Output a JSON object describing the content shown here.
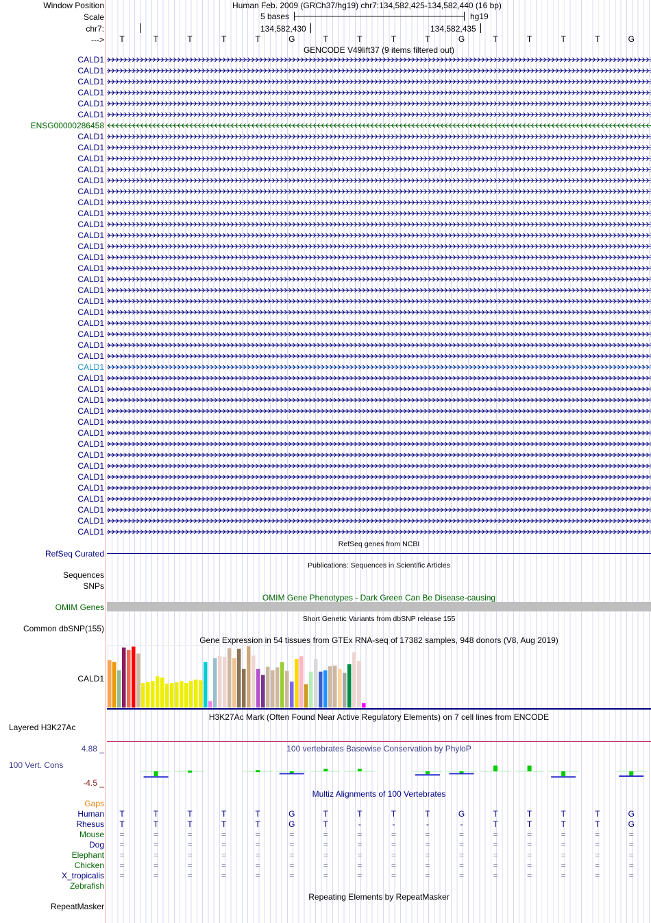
{
  "header": {
    "window_position_label": "Window Position",
    "assembly_position": "Human Feb. 2009 (GRCh37/hg19)   chr7:134,582,425-134,582,440 (16 bp)",
    "scale_label": "Scale",
    "scale_text": "5 bases",
    "scale_db": "hg19",
    "chrom_label": "chr7:",
    "coord_ticks": [
      "134,582,430",
      "134,582,435"
    ],
    "strand_label": "--->"
  },
  "bases": [
    "T",
    "T",
    "T",
    "T",
    "T",
    "G",
    "T",
    "T",
    "T",
    "T",
    "G",
    "T",
    "T",
    "T",
    "T",
    "G"
  ],
  "gencode": {
    "title": "GENCODE V49lift37 (9 items filtered out)",
    "rows": [
      {
        "name": "CALD1",
        "strand": "+",
        "color": "#000080"
      },
      {
        "name": "CALD1",
        "strand": "+",
        "color": "#000080"
      },
      {
        "name": "CALD1",
        "strand": "+",
        "color": "#000080"
      },
      {
        "name": "CALD1",
        "strand": "+",
        "color": "#000080"
      },
      {
        "name": "CALD1",
        "strand": "+",
        "color": "#000080"
      },
      {
        "name": "CALD1",
        "strand": "+",
        "color": "#000080"
      },
      {
        "name": "ENSG00000286458",
        "strand": "-",
        "color": "#006400"
      },
      {
        "name": "CALD1",
        "strand": "+",
        "color": "#000080"
      },
      {
        "name": "CALD1",
        "strand": "+",
        "color": "#000080"
      },
      {
        "name": "CALD1",
        "strand": "+",
        "color": "#000080"
      },
      {
        "name": "CALD1",
        "strand": "+",
        "color": "#000080"
      },
      {
        "name": "CALD1",
        "strand": "+",
        "color": "#000080"
      },
      {
        "name": "CALD1",
        "strand": "+",
        "color": "#000080"
      },
      {
        "name": "CALD1",
        "strand": "+",
        "color": "#000080"
      },
      {
        "name": "CALD1",
        "strand": "+",
        "color": "#000080"
      },
      {
        "name": "CALD1",
        "strand": "+",
        "color": "#000080"
      },
      {
        "name": "CALD1",
        "strand": "+",
        "color": "#000080"
      },
      {
        "name": "CALD1",
        "strand": "+",
        "color": "#000080"
      },
      {
        "name": "CALD1",
        "strand": "+",
        "color": "#000080"
      },
      {
        "name": "CALD1",
        "strand": "+",
        "color": "#000080"
      },
      {
        "name": "CALD1",
        "strand": "+",
        "color": "#000080"
      },
      {
        "name": "CALD1",
        "strand": "+",
        "color": "#000080"
      },
      {
        "name": "CALD1",
        "strand": "+",
        "color": "#000080"
      },
      {
        "name": "CALD1",
        "strand": "+",
        "color": "#000080"
      },
      {
        "name": "CALD1",
        "strand": "+",
        "color": "#000080"
      },
      {
        "name": "CALD1",
        "strand": "+",
        "color": "#000080"
      },
      {
        "name": "CALD1",
        "strand": "+",
        "color": "#000080"
      },
      {
        "name": "CALD1",
        "strand": "+",
        "color": "#000080"
      },
      {
        "name": "CALD1",
        "strand": "+",
        "color": "#1e90c8"
      },
      {
        "name": "CALD1",
        "strand": "+",
        "color": "#000080"
      },
      {
        "name": "CALD1",
        "strand": "+",
        "color": "#000080"
      },
      {
        "name": "CALD1",
        "strand": "+",
        "color": "#000080"
      },
      {
        "name": "CALD1",
        "strand": "+",
        "color": "#000080"
      },
      {
        "name": "CALD1",
        "strand": "+",
        "color": "#000080"
      },
      {
        "name": "CALD1",
        "strand": "+",
        "color": "#000080"
      },
      {
        "name": "CALD1",
        "strand": "+",
        "color": "#000080"
      },
      {
        "name": "CALD1",
        "strand": "+",
        "color": "#000080"
      },
      {
        "name": "CALD1",
        "strand": "+",
        "color": "#000080"
      },
      {
        "name": "CALD1",
        "strand": "+",
        "color": "#000080"
      },
      {
        "name": "CALD1",
        "strand": "+",
        "color": "#000080"
      },
      {
        "name": "CALD1",
        "strand": "+",
        "color": "#000080"
      },
      {
        "name": "CALD1",
        "strand": "+",
        "color": "#000080"
      },
      {
        "name": "CALD1",
        "strand": "+",
        "color": "#000080"
      },
      {
        "name": "CALD1",
        "strand": "+",
        "color": "#000080"
      }
    ]
  },
  "refseq": {
    "title": "RefSeq genes from NCBI",
    "label": "RefSeq Curated"
  },
  "publications": {
    "title": "Publications: Sequences in Scientific Articles",
    "label_sequences": "Sequences",
    "label_snps": "SNPs"
  },
  "omim": {
    "title": "OMIM Gene Phenotypes - Dark Green Can Be Disease-causing",
    "label": "OMIM Genes"
  },
  "dbsnp": {
    "title": "Short Genetic Variants from dbSNP release 155",
    "label": "Common dbSNP(155)"
  },
  "gtex": {
    "title": "Gene Expression in 54 tissues from GTEx RNA-seq of 17382 samples, 948 donors (V8, Aug 2019)",
    "label": "CALD1"
  },
  "chart_data": {
    "type": "bar",
    "title": "Gene Expression in 54 tissues from GTEx RNA-seq of 17382 samples, 948 donors (V8, Aug 2019)",
    "values": [
      212,
      204,
      167,
      269,
      258,
      273,
      242,
      110,
      114,
      119,
      140,
      134,
      107,
      110,
      113,
      119,
      110,
      119,
      125,
      122,
      204,
      29,
      221,
      230,
      227,
      266,
      221,
      263,
      173,
      275,
      233,
      173,
      146,
      183,
      167,
      180,
      203,
      164,
      116,
      218,
      230,
      104,
      161,
      218,
      161,
      167,
      185,
      188,
      173,
      155,
      194,
      248,
      209,
      20
    ],
    "colors": [
      "#FFA54F",
      "#EE9A00",
      "#8FBC8F",
      "#8B1C62",
      "#EE6A50",
      "#FF0000",
      "#CDB79E",
      "#EEEE00",
      "#EEEE00",
      "#EEEE00",
      "#EEEE00",
      "#EEEE00",
      "#EEEE00",
      "#EEEE00",
      "#EEEE00",
      "#EEEE00",
      "#EEEE00",
      "#EEEE00",
      "#EEEE00",
      "#EEEE00",
      "#00CED1",
      "#EE82EE",
      "#9AC0CD",
      "#EED5D2",
      "#EED5D2",
      "#CDB79E",
      "#EEC591",
      "#8B7355",
      "#8B7355",
      "#CDAA7D",
      "#EED5D2",
      "#B452CD",
      "#7A378B",
      "#CDB79E",
      "#CDB79E",
      "#CDB79E",
      "#9ACD32",
      "#CDB79E",
      "#7B68EE",
      "#FFD700",
      "#FFB6C1",
      "#CD9B1D",
      "#B4EEB4",
      "#D9D9D9",
      "#3A5FCD",
      "#1E90FF",
      "#CDB79E",
      "#CDB79E",
      "#FFD39B",
      "#A6A6A6",
      "#008B45",
      "#EED5D2",
      "#EED5D2",
      "#FF00FF"
    ],
    "ylim": [
      0,
      280
    ]
  },
  "h3k27ac": {
    "title": "H3K27Ac Mark (Often Found Near Active Regulatory Elements) on 7 cell lines from ENCODE",
    "label": "Layered H3K27Ac"
  },
  "phylop": {
    "title": "100 vertebrates Basewise Conservation by PhyloP",
    "label": "100 Vert. Cons",
    "max": "4.88 _",
    "min": "-4.5 _",
    "scores": [
      0,
      -1.2,
      0.2,
      0,
      0.3,
      -0.4,
      0.6,
      0.6,
      0,
      -0.7,
      -0.4,
      1.4,
      1.4,
      -1.2,
      0,
      -1.0
    ]
  },
  "multiz": {
    "title": "Multiz Alignments of 100 Vertebrates",
    "gaps_label": "Gaps",
    "species": [
      {
        "name": "Human",
        "color": "#000080",
        "seq": [
          "T",
          "T",
          "T",
          "T",
          "T",
          "G",
          "T",
          "T",
          "T",
          "T",
          "G",
          "T",
          "T",
          "T",
          "T",
          "G"
        ]
      },
      {
        "name": "Rhesus",
        "color": "#000080",
        "seq": [
          "T",
          "T",
          "T",
          "T",
          "T",
          "G",
          "T",
          "-",
          "-",
          "-",
          "-",
          "T",
          "T",
          "T",
          "T",
          "G"
        ]
      },
      {
        "name": "Mouse",
        "color": "#006400",
        "seq": [
          "=",
          "=",
          "=",
          "=",
          "=",
          "=",
          "=",
          "=",
          "=",
          "=",
          "=",
          "=",
          "=",
          "=",
          "=",
          "="
        ]
      },
      {
        "name": "Dog",
        "color": "#000080",
        "seq": [
          "=",
          "=",
          "=",
          "=",
          "=",
          "=",
          "=",
          "=",
          "=",
          "=",
          "=",
          "=",
          "=",
          "=",
          "=",
          "="
        ]
      },
      {
        "name": "Elephant",
        "color": "#006400",
        "seq": [
          "=",
          "=",
          "=",
          "=",
          "=",
          "=",
          "=",
          "=",
          "=",
          "=",
          "=",
          "=",
          "=",
          "=",
          "=",
          "="
        ]
      },
      {
        "name": "Chicken",
        "color": "#006400",
        "seq": [
          "=",
          "=",
          "=",
          "=",
          "=",
          "=",
          "=",
          "=",
          "=",
          "=",
          "=",
          "=",
          "=",
          "=",
          "=",
          "="
        ]
      },
      {
        "name": "X_tropicalis",
        "color": "#000080",
        "seq": [
          "=",
          "=",
          "=",
          "=",
          "=",
          "=",
          "=",
          "=",
          "=",
          "=",
          "=",
          "=",
          "=",
          "=",
          "=",
          "="
        ]
      },
      {
        "name": "Zebrafish",
        "color": "#006400",
        "seq": []
      }
    ]
  },
  "repeatmasker": {
    "title": "Repeating Elements by RepeatMasker",
    "label": "RepeatMasker"
  }
}
